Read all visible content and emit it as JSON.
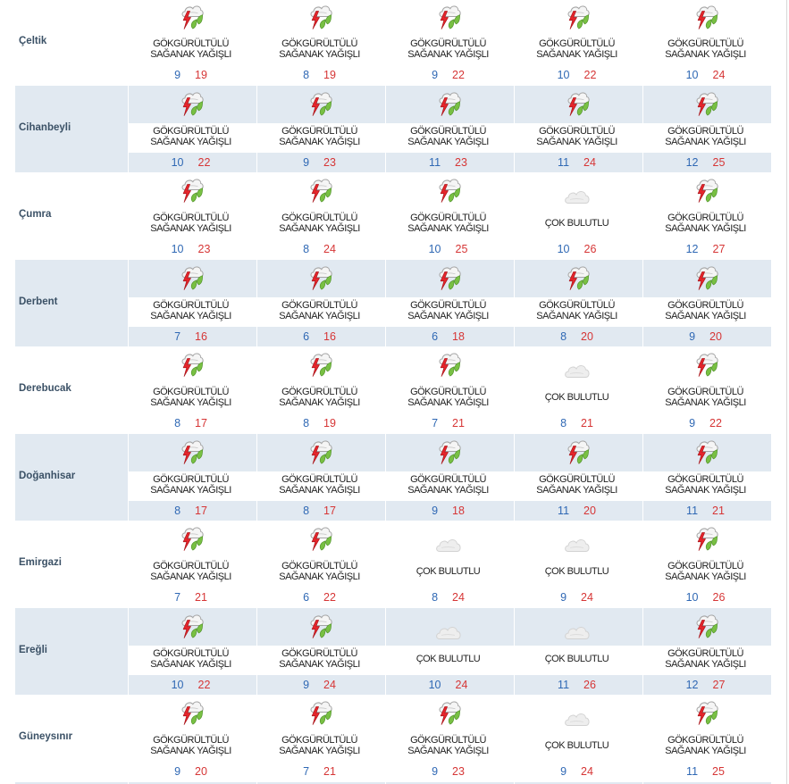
{
  "colors": {
    "row_shade": "#e1e9f1",
    "min_temp": "#2f68b4",
    "max_temp": "#d63636",
    "district_name": "#3b5166",
    "condition_text": "#222222"
  },
  "rows": [
    {
      "name": "Çeltik",
      "days": [
        {
          "icon": "thunderstorm-rain-icon",
          "condition": "GÖKGÜRÜLTÜLÜ SAĞANAK YAĞIŞLI",
          "min": 9,
          "max": 19
        },
        {
          "icon": "thunderstorm-rain-icon",
          "condition": "GÖKGÜRÜLTÜLÜ SAĞANAK YAĞIŞLI",
          "min": 8,
          "max": 19
        },
        {
          "icon": "thunderstorm-rain-icon",
          "condition": "GÖKGÜRÜLTÜLÜ SAĞANAK YAĞIŞLI",
          "min": 9,
          "max": 22
        },
        {
          "icon": "thunderstorm-rain-icon",
          "condition": "GÖKGÜRÜLTÜLÜ SAĞANAK YAĞIŞLI",
          "min": 10,
          "max": 22
        },
        {
          "icon": "thunderstorm-rain-icon",
          "condition": "GÖKGÜRÜLTÜLÜ SAĞANAK YAĞIŞLI",
          "min": 10,
          "max": 24
        }
      ]
    },
    {
      "name": "Cihanbeyli",
      "days": [
        {
          "icon": "thunderstorm-rain-icon",
          "condition": "GÖKGÜRÜLTÜLÜ SAĞANAK YAĞIŞLI",
          "min": 10,
          "max": 22
        },
        {
          "icon": "thunderstorm-rain-icon",
          "condition": "GÖKGÜRÜLTÜLÜ SAĞANAK YAĞIŞLI",
          "min": 9,
          "max": 23
        },
        {
          "icon": "thunderstorm-rain-icon",
          "condition": "GÖKGÜRÜLTÜLÜ SAĞANAK YAĞIŞLI",
          "min": 11,
          "max": 23
        },
        {
          "icon": "thunderstorm-rain-icon",
          "condition": "GÖKGÜRÜLTÜLÜ SAĞANAK YAĞIŞLI",
          "min": 11,
          "max": 24
        },
        {
          "icon": "thunderstorm-rain-icon",
          "condition": "GÖKGÜRÜLTÜLÜ SAĞANAK YAĞIŞLI",
          "min": 12,
          "max": 25
        }
      ]
    },
    {
      "name": "Çumra",
      "days": [
        {
          "icon": "thunderstorm-rain-icon",
          "condition": "GÖKGÜRÜLTÜLÜ SAĞANAK YAĞIŞLI",
          "min": 10,
          "max": 23
        },
        {
          "icon": "thunderstorm-rain-icon",
          "condition": "GÖKGÜRÜLTÜLÜ SAĞANAK YAĞIŞLI",
          "min": 8,
          "max": 24
        },
        {
          "icon": "thunderstorm-rain-icon",
          "condition": "GÖKGÜRÜLTÜLÜ SAĞANAK YAĞIŞLI",
          "min": 10,
          "max": 25
        },
        {
          "icon": "cloudy-icon",
          "condition": "ÇOK BULUTLU",
          "min": 10,
          "max": 26
        },
        {
          "icon": "thunderstorm-rain-icon",
          "condition": "GÖKGÜRÜLTÜLÜ SAĞANAK YAĞIŞLI",
          "min": 12,
          "max": 27
        }
      ]
    },
    {
      "name": "Derbent",
      "days": [
        {
          "icon": "thunderstorm-rain-icon",
          "condition": "GÖKGÜRÜLTÜLÜ SAĞANAK YAĞIŞLI",
          "min": 7,
          "max": 16
        },
        {
          "icon": "thunderstorm-rain-icon",
          "condition": "GÖKGÜRÜLTÜLÜ SAĞANAK YAĞIŞLI",
          "min": 6,
          "max": 16
        },
        {
          "icon": "thunderstorm-rain-icon",
          "condition": "GÖKGÜRÜLTÜLÜ SAĞANAK YAĞIŞLI",
          "min": 6,
          "max": 18
        },
        {
          "icon": "thunderstorm-rain-icon",
          "condition": "GÖKGÜRÜLTÜLÜ SAĞANAK YAĞIŞLI",
          "min": 8,
          "max": 20
        },
        {
          "icon": "thunderstorm-rain-icon",
          "condition": "GÖKGÜRÜLTÜLÜ SAĞANAK YAĞIŞLI",
          "min": 9,
          "max": 20
        }
      ]
    },
    {
      "name": "Derebucak",
      "days": [
        {
          "icon": "thunderstorm-rain-icon",
          "condition": "GÖKGÜRÜLTÜLÜ SAĞANAK YAĞIŞLI",
          "min": 8,
          "max": 17
        },
        {
          "icon": "thunderstorm-rain-icon",
          "condition": "GÖKGÜRÜLTÜLÜ SAĞANAK YAĞIŞLI",
          "min": 8,
          "max": 19
        },
        {
          "icon": "thunderstorm-rain-icon",
          "condition": "GÖKGÜRÜLTÜLÜ SAĞANAK YAĞIŞLI",
          "min": 7,
          "max": 21
        },
        {
          "icon": "cloudy-icon",
          "condition": "ÇOK BULUTLU",
          "min": 8,
          "max": 21
        },
        {
          "icon": "thunderstorm-rain-icon",
          "condition": "GÖKGÜRÜLTÜLÜ SAĞANAK YAĞIŞLI",
          "min": 9,
          "max": 22
        }
      ]
    },
    {
      "name": "Doğanhisar",
      "days": [
        {
          "icon": "thunderstorm-rain-icon",
          "condition": "GÖKGÜRÜLTÜLÜ SAĞANAK YAĞIŞLI",
          "min": 8,
          "max": 17
        },
        {
          "icon": "thunderstorm-rain-icon",
          "condition": "GÖKGÜRÜLTÜLÜ SAĞANAK YAĞIŞLI",
          "min": 8,
          "max": 17
        },
        {
          "icon": "thunderstorm-rain-icon",
          "condition": "GÖKGÜRÜLTÜLÜ SAĞANAK YAĞIŞLI",
          "min": 9,
          "max": 18
        },
        {
          "icon": "thunderstorm-rain-icon",
          "condition": "GÖKGÜRÜLTÜLÜ SAĞANAK YAĞIŞLI",
          "min": 11,
          "max": 20
        },
        {
          "icon": "thunderstorm-rain-icon",
          "condition": "GÖKGÜRÜLTÜLÜ SAĞANAK YAĞIŞLI",
          "min": 11,
          "max": 21
        }
      ]
    },
    {
      "name": "Emirgazi",
      "days": [
        {
          "icon": "thunderstorm-rain-icon",
          "condition": "GÖKGÜRÜLTÜLÜ SAĞANAK YAĞIŞLI",
          "min": 7,
          "max": 21
        },
        {
          "icon": "thunderstorm-rain-icon",
          "condition": "GÖKGÜRÜLTÜLÜ SAĞANAK YAĞIŞLI",
          "min": 6,
          "max": 22
        },
        {
          "icon": "cloudy-icon",
          "condition": "ÇOK BULUTLU",
          "min": 8,
          "max": 24
        },
        {
          "icon": "cloudy-icon",
          "condition": "ÇOK BULUTLU",
          "min": 9,
          "max": 24
        },
        {
          "icon": "thunderstorm-rain-icon",
          "condition": "GÖKGÜRÜLTÜLÜ SAĞANAK YAĞIŞLI",
          "min": 10,
          "max": 26
        }
      ]
    },
    {
      "name": "Ereğli",
      "days": [
        {
          "icon": "thunderstorm-rain-icon",
          "condition": "GÖKGÜRÜLTÜLÜ SAĞANAK YAĞIŞLI",
          "min": 10,
          "max": 22
        },
        {
          "icon": "thunderstorm-rain-icon",
          "condition": "GÖKGÜRÜLTÜLÜ SAĞANAK YAĞIŞLI",
          "min": 9,
          "max": 24
        },
        {
          "icon": "cloudy-icon",
          "condition": "ÇOK BULUTLU",
          "min": 10,
          "max": 24
        },
        {
          "icon": "cloudy-icon",
          "condition": "ÇOK BULUTLU",
          "min": 11,
          "max": 26
        },
        {
          "icon": "thunderstorm-rain-icon",
          "condition": "GÖKGÜRÜLTÜLÜ SAĞANAK YAĞIŞLI",
          "min": 12,
          "max": 27
        }
      ]
    },
    {
      "name": "Güneysınır",
      "days": [
        {
          "icon": "thunderstorm-rain-icon",
          "condition": "GÖKGÜRÜLTÜLÜ SAĞANAK YAĞIŞLI",
          "min": 9,
          "max": 20
        },
        {
          "icon": "thunderstorm-rain-icon",
          "condition": "GÖKGÜRÜLTÜLÜ SAĞANAK YAĞIŞLI",
          "min": 7,
          "max": 21
        },
        {
          "icon": "thunderstorm-rain-icon",
          "condition": "GÖKGÜRÜLTÜLÜ SAĞANAK YAĞIŞLI",
          "min": 9,
          "max": 23
        },
        {
          "icon": "cloudy-icon",
          "condition": "ÇOK BULUTLU",
          "min": 9,
          "max": 24
        },
        {
          "icon": "thunderstorm-rain-icon",
          "condition": "GÖKGÜRÜLTÜLÜ SAĞANAK YAĞIŞLI",
          "min": 11,
          "max": 25
        }
      ]
    }
  ]
}
